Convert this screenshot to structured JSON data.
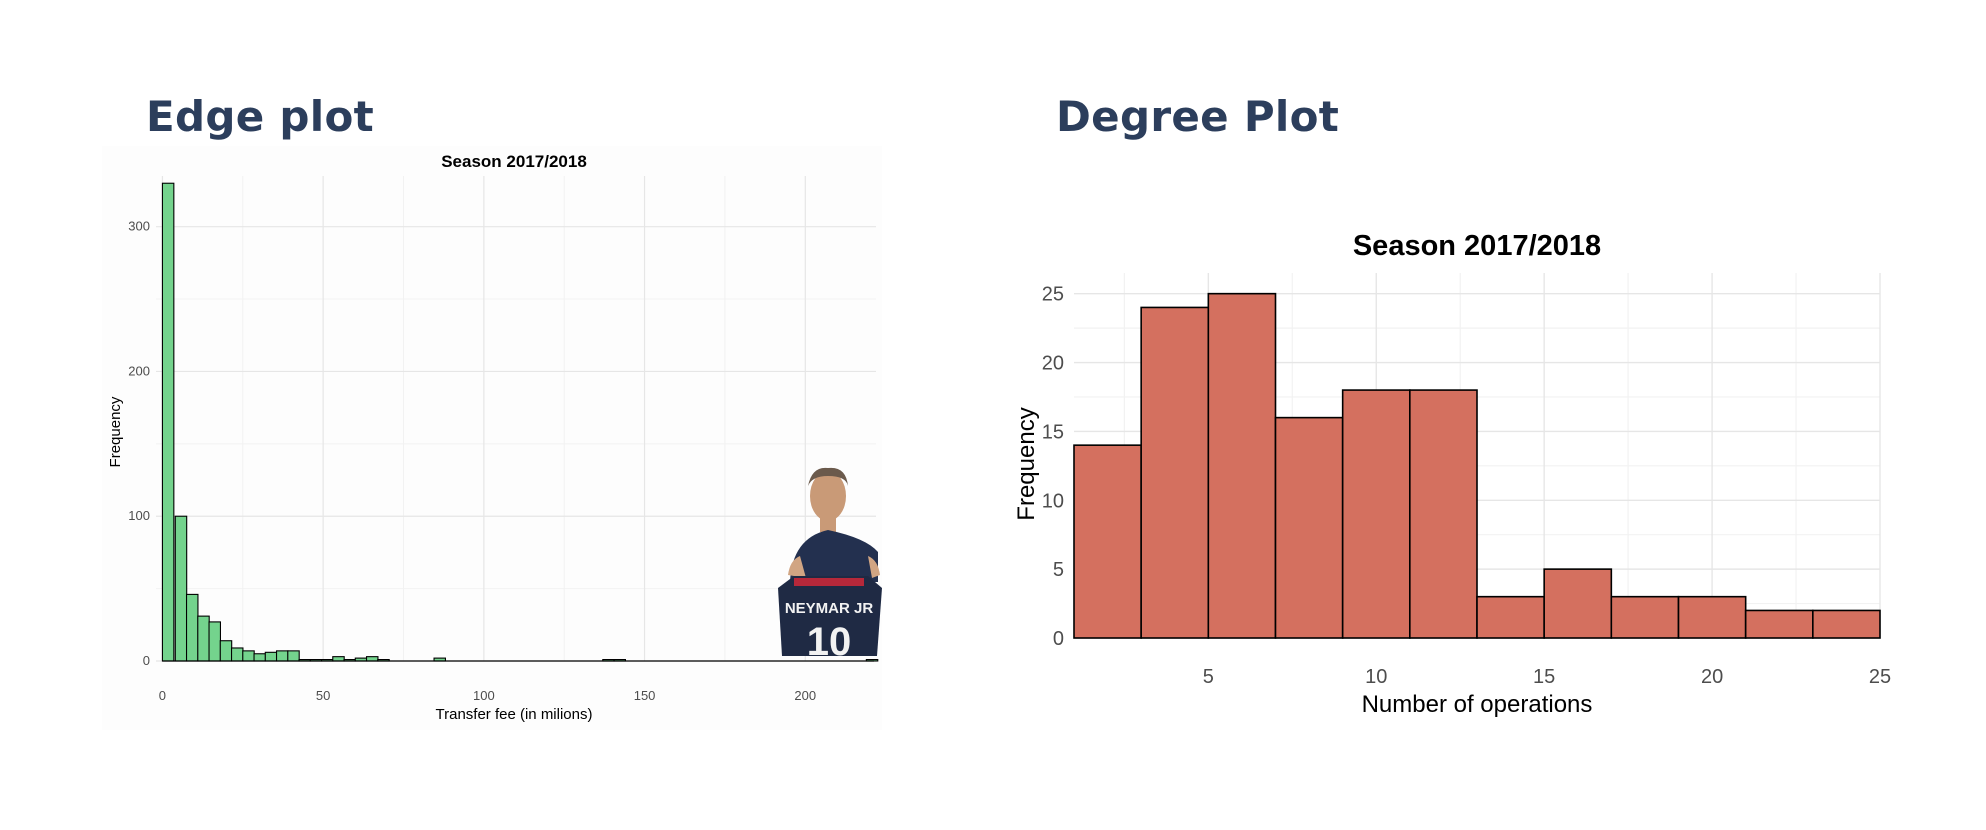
{
  "slide": {
    "left_heading": "Edge plot",
    "right_heading": "Degree Plot"
  },
  "colors": {
    "heading": "#2c3e5c",
    "edge_bar_fill": "#74d38d",
    "degree_bar_fill": "#d4705f",
    "bar_outline": "#000000"
  },
  "player_photo": {
    "icon": "player-holding-jersey-icon",
    "jersey_text": "NEYMAR JR",
    "jersey_number": "10"
  },
  "chart_data": [
    {
      "type": "bar",
      "title": "Season 2017/2018",
      "xlabel": "Transfer fee (in milions)",
      "ylabel": "Frequency",
      "xlim": [
        -2,
        222
      ],
      "ylim": [
        0,
        335
      ],
      "xticks": [
        0,
        50,
        100,
        150,
        200
      ],
      "yticks": [
        0,
        100,
        200,
        300
      ],
      "grid": true,
      "bin_width": 3.55,
      "bins": [
        {
          "x": 0,
          "count": 330
        },
        {
          "x": 4,
          "count": 100
        },
        {
          "x": 7.5,
          "count": 46
        },
        {
          "x": 11,
          "count": 31
        },
        {
          "x": 14.5,
          "count": 27
        },
        {
          "x": 18,
          "count": 14
        },
        {
          "x": 21.5,
          "count": 9
        },
        {
          "x": 25,
          "count": 7
        },
        {
          "x": 28.5,
          "count": 5
        },
        {
          "x": 32,
          "count": 6
        },
        {
          "x": 35.5,
          "count": 7
        },
        {
          "x": 39,
          "count": 7
        },
        {
          "x": 42.5,
          "count": 1
        },
        {
          "x": 46,
          "count": 1
        },
        {
          "x": 49.5,
          "count": 1
        },
        {
          "x": 53,
          "count": 3
        },
        {
          "x": 56.5,
          "count": 1
        },
        {
          "x": 60,
          "count": 2
        },
        {
          "x": 63.5,
          "count": 3
        },
        {
          "x": 67,
          "count": 1
        },
        {
          "x": 84.5,
          "count": 2
        },
        {
          "x": 137,
          "count": 1
        },
        {
          "x": 140.5,
          "count": 1
        },
        {
          "x": 219,
          "count": 1
        }
      ]
    },
    {
      "type": "bar",
      "title": "Season 2017/2018",
      "xlabel": "Number of operations",
      "ylabel": "Frequency",
      "xlim": [
        1,
        25
      ],
      "ylim": [
        0,
        26.5
      ],
      "xticks": [
        5,
        10,
        15,
        20,
        25
      ],
      "yticks": [
        0,
        5,
        10,
        15,
        20,
        25
      ],
      "grid": true,
      "bins": [
        {
          "x0": 1,
          "x1": 3,
          "count": 14
        },
        {
          "x0": 3,
          "x1": 5,
          "count": 24
        },
        {
          "x0": 5,
          "x1": 7,
          "count": 25
        },
        {
          "x0": 7,
          "x1": 9,
          "count": 16
        },
        {
          "x0": 9,
          "x1": 11,
          "count": 18
        },
        {
          "x0": 11,
          "x1": 13,
          "count": 18
        },
        {
          "x0": 13,
          "x1": 15,
          "count": 3
        },
        {
          "x0": 15,
          "x1": 17,
          "count": 5
        },
        {
          "x0": 17,
          "x1": 19,
          "count": 3
        },
        {
          "x0": 19,
          "x1": 21,
          "count": 3
        },
        {
          "x0": 21,
          "x1": 23,
          "count": 2
        },
        {
          "x0": 23,
          "x1": 25,
          "count": 2
        }
      ]
    }
  ]
}
